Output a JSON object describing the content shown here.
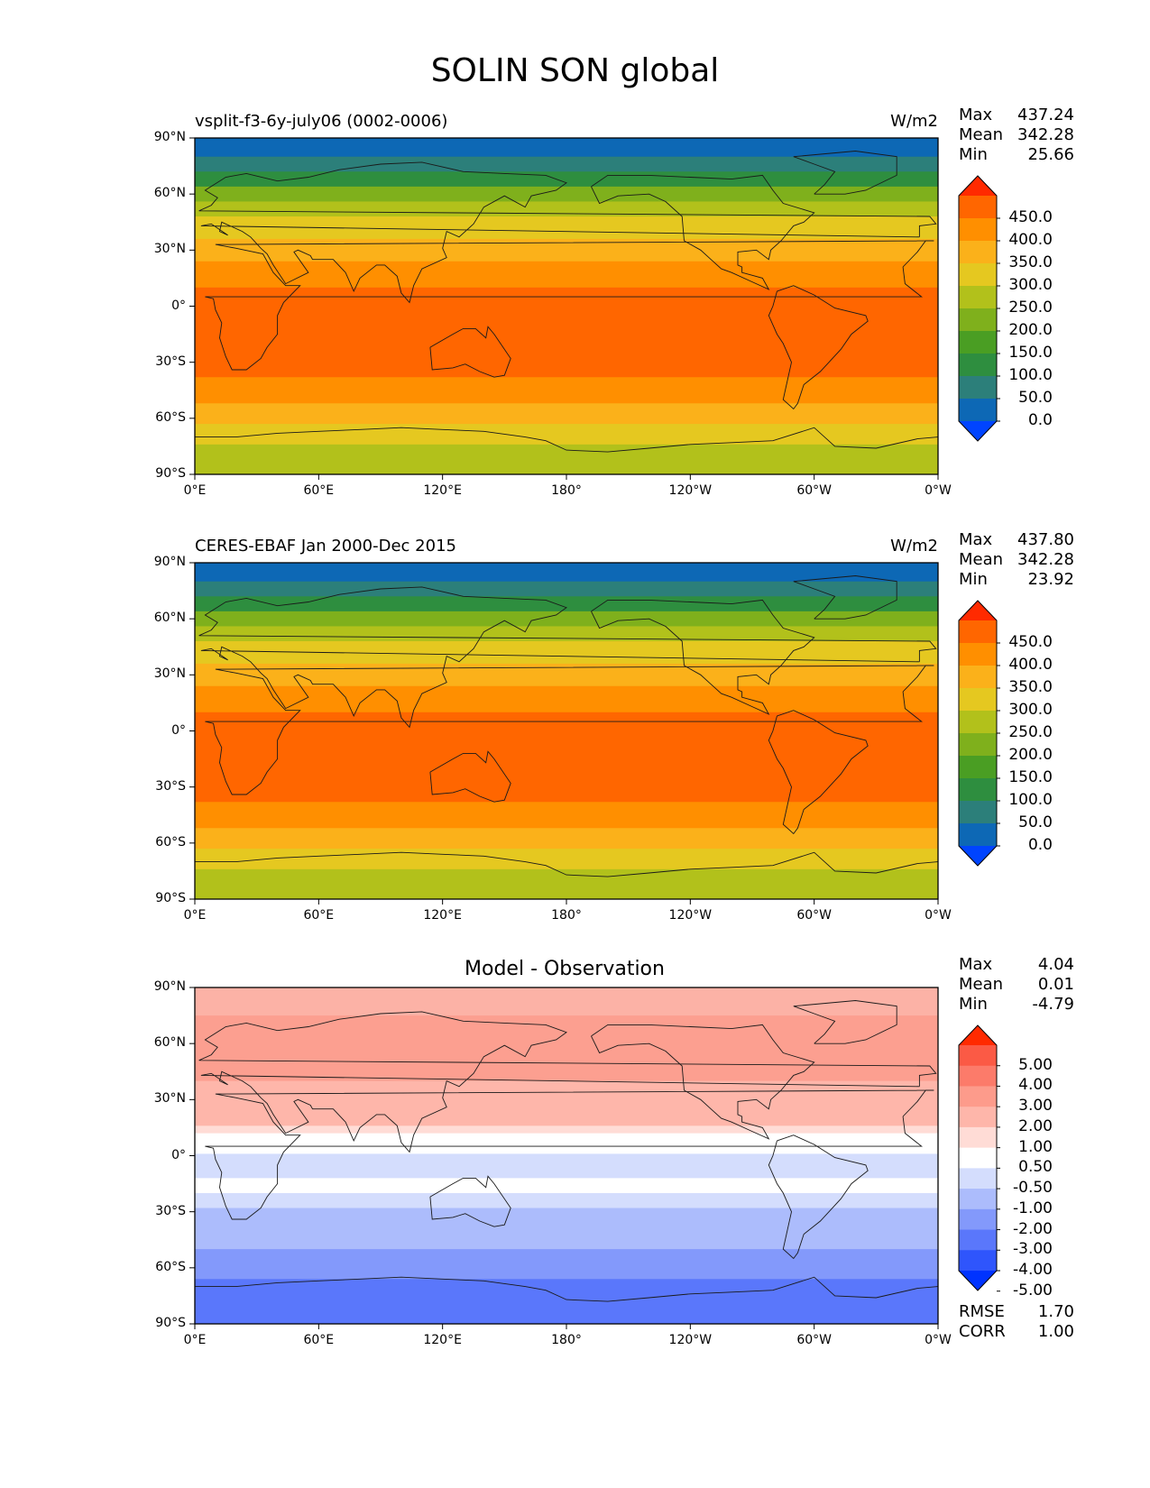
{
  "figure": {
    "title": "SOLIN SON global"
  },
  "axes": {
    "lat_labels": [
      "90°N",
      "60°N",
      "30°N",
      "0°",
      "30°S",
      "60°S",
      "90°S"
    ],
    "lon_labels": [
      "0°E",
      "60°E",
      "120°E",
      "180°",
      "120°W",
      "60°W",
      "0°W"
    ]
  },
  "panels": [
    {
      "left_title": "vsplit-f3-6y-july06 (0002-0006)",
      "center_title": "",
      "unit": "W/m2",
      "stats": {
        "max_label": "Max",
        "max": "437.24",
        "mean_label": "Mean",
        "mean": "342.28",
        "min_label": "Min",
        "min": "25.66"
      },
      "colorbar": {
        "labels": [
          "450.0",
          "400.0",
          "350.0",
          "300.0",
          "250.0",
          "200.0",
          "150.0",
          "100.0",
          "50.0",
          "0.0"
        ],
        "colors": [
          "#ff2a00",
          "#ff6600",
          "#ff8f00",
          "#fbb11a",
          "#e5c820",
          "#b2c11b",
          "#7fb01c",
          "#4a9e23",
          "#2e8e3f",
          "#2c7f7a",
          "#0d68b5",
          "#0044ff"
        ]
      },
      "map_bands": [
        {
          "lat_top": 90,
          "lat_bottom": 80,
          "color": "#0d68b5"
        },
        {
          "lat_top": 80,
          "lat_bottom": 72,
          "color": "#2c7f7a"
        },
        {
          "lat_top": 72,
          "lat_bottom": 64,
          "color": "#2e8e3f"
        },
        {
          "lat_top": 64,
          "lat_bottom": 56,
          "color": "#7fb01c"
        },
        {
          "lat_top": 56,
          "lat_bottom": 48,
          "color": "#b2c11b"
        },
        {
          "lat_top": 48,
          "lat_bottom": 36,
          "color": "#e5c820"
        },
        {
          "lat_top": 36,
          "lat_bottom": 24,
          "color": "#fbb11a"
        },
        {
          "lat_top": 24,
          "lat_bottom": 10,
          "color": "#ff8f00"
        },
        {
          "lat_top": 10,
          "lat_bottom": -38,
          "color": "#ff6600"
        },
        {
          "lat_top": -38,
          "lat_bottom": -52,
          "color": "#ff8f00"
        },
        {
          "lat_top": -52,
          "lat_bottom": -63,
          "color": "#fbb11a"
        },
        {
          "lat_top": -63,
          "lat_bottom": -74,
          "color": "#e5c820"
        },
        {
          "lat_top": -74,
          "lat_bottom": -90,
          "color": "#b2c11b"
        }
      ]
    },
    {
      "left_title": "CERES-EBAF Jan 2000-Dec 2015",
      "center_title": "",
      "unit": "W/m2",
      "stats": {
        "max_label": "Max",
        "max": "437.80",
        "mean_label": "Mean",
        "mean": "342.28",
        "min_label": "Min",
        "min": "23.92"
      },
      "colorbar": {
        "labels": [
          "450.0",
          "400.0",
          "350.0",
          "300.0",
          "250.0",
          "200.0",
          "150.0",
          "100.0",
          "50.0",
          "0.0"
        ],
        "colors": [
          "#ff2a00",
          "#ff6600",
          "#ff8f00",
          "#fbb11a",
          "#e5c820",
          "#b2c11b",
          "#7fb01c",
          "#4a9e23",
          "#2e8e3f",
          "#2c7f7a",
          "#0d68b5",
          "#0044ff"
        ]
      },
      "map_bands": [
        {
          "lat_top": 90,
          "lat_bottom": 80,
          "color": "#0d68b5"
        },
        {
          "lat_top": 80,
          "lat_bottom": 72,
          "color": "#2c7f7a"
        },
        {
          "lat_top": 72,
          "lat_bottom": 64,
          "color": "#2e8e3f"
        },
        {
          "lat_top": 64,
          "lat_bottom": 56,
          "color": "#7fb01c"
        },
        {
          "lat_top": 56,
          "lat_bottom": 48,
          "color": "#b2c11b"
        },
        {
          "lat_top": 48,
          "lat_bottom": 36,
          "color": "#e5c820"
        },
        {
          "lat_top": 36,
          "lat_bottom": 24,
          "color": "#fbb11a"
        },
        {
          "lat_top": 24,
          "lat_bottom": 10,
          "color": "#ff8f00"
        },
        {
          "lat_top": 10,
          "lat_bottom": -38,
          "color": "#ff6600"
        },
        {
          "lat_top": -38,
          "lat_bottom": -52,
          "color": "#ff8f00"
        },
        {
          "lat_top": -52,
          "lat_bottom": -63,
          "color": "#fbb11a"
        },
        {
          "lat_top": -63,
          "lat_bottom": -74,
          "color": "#e5c820"
        },
        {
          "lat_top": -74,
          "lat_bottom": -90,
          "color": "#b2c11b"
        }
      ]
    },
    {
      "left_title": "",
      "center_title": "Model - Observation",
      "unit": "",
      "stats": {
        "max_label": "Max",
        "max": "4.04",
        "mean_label": "Mean",
        "mean": "0.01",
        "min_label": "Min",
        "min": "-4.79"
      },
      "colorbar": {
        "labels": [
          "5.00",
          "4.00",
          "3.00",
          "2.00",
          "1.00",
          "0.50",
          "-0.50",
          "-1.00",
          "-2.00",
          "-3.00",
          "-4.00",
          "-5.00"
        ],
        "colors": [
          "#ff2a00",
          "#fb5a45",
          "#fc7b6a",
          "#fd9b8b",
          "#feb6aa",
          "#ffdcd6",
          "#ffffff",
          "#d4ddfd",
          "#acbcfc",
          "#8399fb",
          "#5a77fb",
          "#2f55fc",
          "#0033ff"
        ]
      },
      "map_bands": [
        {
          "lat_top": 90,
          "lat_bottom": 75,
          "color": "#fcb2a6"
        },
        {
          "lat_top": 75,
          "lat_bottom": 40,
          "color": "#fc9f90"
        },
        {
          "lat_top": 40,
          "lat_bottom": 16,
          "color": "#feb6aa"
        },
        {
          "lat_top": 16,
          "lat_bottom": 12,
          "color": "#ffdcd6"
        },
        {
          "lat_top": 12,
          "lat_bottom": 1,
          "color": "#ffffff"
        },
        {
          "lat_top": 1,
          "lat_bottom": -12,
          "color": "#d4ddfd"
        },
        {
          "lat_top": -12,
          "lat_bottom": -20,
          "color": "#ffffff"
        },
        {
          "lat_top": -20,
          "lat_bottom": -28,
          "color": "#d4ddfd"
        },
        {
          "lat_top": -28,
          "lat_bottom": -50,
          "color": "#acbcfc"
        },
        {
          "lat_top": -50,
          "lat_bottom": -66,
          "color": "#8399fb"
        },
        {
          "lat_top": -66,
          "lat_bottom": -90,
          "color": "#5a77fb"
        }
      ],
      "metrics": {
        "rmse_label": "RMSE",
        "rmse": "1.70",
        "corr_label": "CORR",
        "corr": "1.00"
      }
    }
  ]
}
